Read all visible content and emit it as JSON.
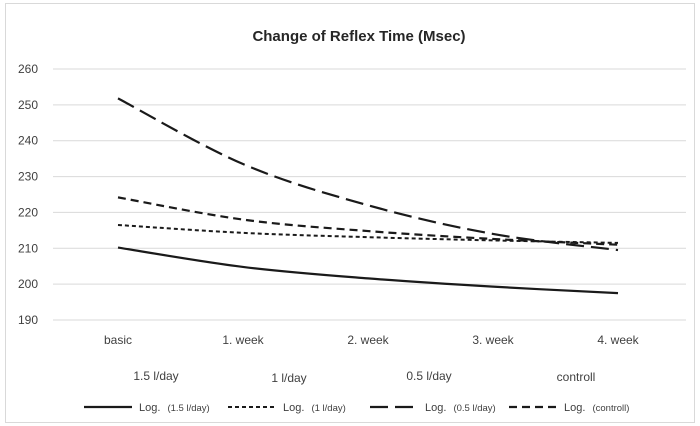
{
  "chart_data": {
    "type": "line",
    "title": "Change of Reflex Time (Msec)",
    "xlabel": "",
    "ylabel": "",
    "categories": [
      "basic",
      "1. week",
      "2. week",
      "3. week",
      "4. week"
    ],
    "ylim": [
      190,
      260
    ],
    "yticks": [
      190,
      200,
      210,
      220,
      230,
      240,
      250,
      260
    ],
    "grid": true,
    "group_labels": [
      "1.5 l/day",
      "1 l/day",
      "0.5 l/day",
      "controll"
    ],
    "series": [
      {
        "name": "Log.",
        "qualifier": "(1.5 l/day)",
        "dash": "solid",
        "color": "#1a1a1a",
        "values": [
          210.2,
          204.8,
          201.6,
          199.3,
          197.5
        ]
      },
      {
        "name": "Log.",
        "qualifier": "(1 l/day)",
        "dash": "dotted",
        "color": "#1a1a1a",
        "values": [
          216.5,
          214.3,
          213.1,
          212.2,
          211.5
        ]
      },
      {
        "name": "Log.",
        "qualifier": "(0.5 l/day)",
        "dash": "long",
        "color": "#1a1a1a",
        "values": [
          251.8,
          233.5,
          222.0,
          214.0,
          209.5
        ]
      },
      {
        "name": "Log.",
        "qualifier": "(controll)",
        "dash": "medium",
        "color": "#1a1a1a",
        "values": [
          224.2,
          218.0,
          214.8,
          212.6,
          211.0
        ]
      }
    ],
    "legend_position": "bottom",
    "gridline_color": "#d9d9d9"
  }
}
